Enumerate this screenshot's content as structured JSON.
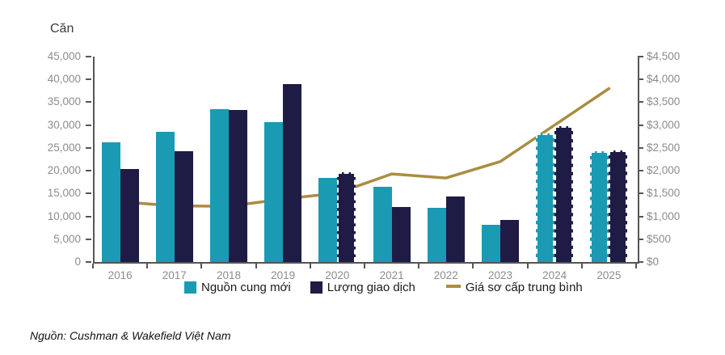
{
  "source_note": "Nguồn: Cushman & Wakefield Việt Nam",
  "style": {
    "axis_line_color": "#555555",
    "tick_label_color": "#8c8c8c",
    "legend_text_color": "#1a1a1a"
  },
  "chart_data": {
    "type": "combo-bar-line",
    "categories": [
      "2016",
      "2017",
      "2018",
      "2019",
      "2020",
      "2021",
      "2022",
      "2023",
      "2024",
      "2025"
    ],
    "series": [
      {
        "name": "Nguồn cung mới",
        "type": "bar",
        "axis": "left",
        "color": "#1B9AB3",
        "values": [
          26300,
          28600,
          33400,
          30600,
          18500,
          16500,
          11800,
          8200,
          28200,
          24200
        ],
        "dashed_outline": [
          false,
          false,
          false,
          false,
          false,
          false,
          false,
          false,
          true,
          true
        ]
      },
      {
        "name": "Lượng giao dịch",
        "type": "bar",
        "axis": "left",
        "color": "#1E1B45",
        "values": [
          20300,
          24300,
          33300,
          38900,
          19700,
          12000,
          14300,
          9300,
          29800,
          24500
        ],
        "dashed_outline": [
          false,
          false,
          false,
          false,
          true,
          false,
          false,
          false,
          true,
          true
        ]
      },
      {
        "name": "Giá sơ cấp trung bình",
        "type": "line",
        "axis": "right",
        "color": "#AB8D3F",
        "values": [
          1320,
          1230,
          1220,
          1380,
          1510,
          1930,
          1840,
          2200,
          3000,
          3800
        ]
      }
    ],
    "left_axis": {
      "title": "Căn",
      "min": 0,
      "max": 45000,
      "step": 5000,
      "tick_labels_top_to_bottom": [
        "45,000",
        "40,000",
        "35,000",
        "30,000",
        "25,000",
        "20,000",
        "15,000",
        "10,000",
        "5,000",
        "0"
      ]
    },
    "right_axis": {
      "min": 0,
      "max": 4500,
      "step": 500,
      "tick_labels_top_to_bottom": [
        "$4,500",
        "$4,000",
        "$3,500",
        "$3,000",
        "$2,500",
        "$2,000",
        "$1,500",
        "$1,000",
        "$500",
        "$0"
      ]
    },
    "legend_position": "bottom",
    "grid": false
  }
}
